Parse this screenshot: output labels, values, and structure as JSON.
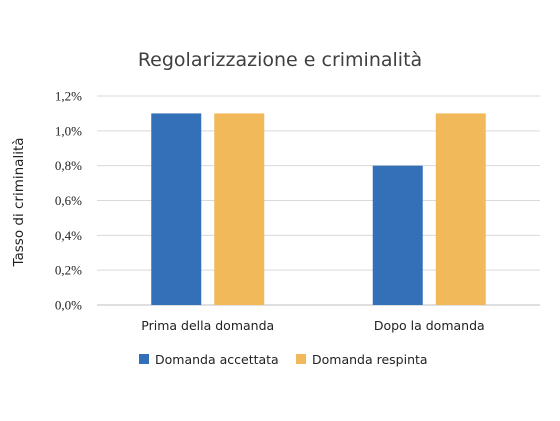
{
  "chart_data": {
    "type": "bar",
    "title": "Regolarizzazione e criminalità",
    "xlabel": "",
    "ylabel": "Tasso di criminalità",
    "categories": [
      "Prima della domanda",
      "Dopo la domanda"
    ],
    "series": [
      {
        "name": "Domanda accettata",
        "values": [
          1.1,
          0.8
        ],
        "color": "#3470b8"
      },
      {
        "name": "Domanda respinta",
        "values": [
          1.1,
          1.1
        ],
        "color": "#f2b95a"
      }
    ],
    "ylim": [
      0,
      1.2
    ],
    "yticks": [
      0.0,
      0.2,
      0.4,
      0.6,
      0.8,
      1.0,
      1.2
    ],
    "ytick_labels": [
      "0,0%",
      "0,2%",
      "0,4%",
      "0,6%",
      "0,8%",
      "1,0%",
      "1,2%"
    ],
    "grid": true,
    "legend_position": "bottom"
  }
}
